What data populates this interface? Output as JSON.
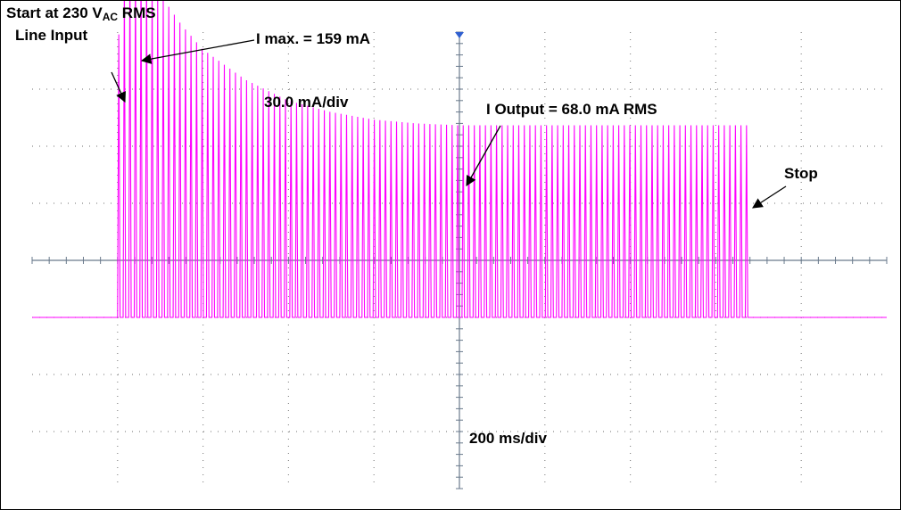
{
  "chart_data": {
    "type": "line",
    "title": "",
    "xlabel": "",
    "ylabel": "",
    "grid": true,
    "divisions": {
      "x": 10,
      "y": 8
    },
    "x_scale_label": "200 ms/div",
    "y_scale_label": "30.0 mA/div",
    "x_range_ms": [
      -1000,
      1000
    ],
    "y_range_mA": [
      -120,
      120
    ],
    "trigger_marker": "trigger-arrow",
    "series": [
      {
        "color": "#ff00ff",
        "baseline_mA": -30.0,
        "start_ms": -800,
        "stop_ms": 680,
        "pulse_period_ms": 13,
        "peak_mA": 159,
        "steady_peak_mA": 68.0,
        "envelope_ms": [
          -800,
          -780,
          -750,
          -700,
          -650,
          -600,
          -500,
          -400,
          -300,
          -200,
          -100,
          0,
          100,
          300,
          500,
          680
        ],
        "envelope_mA": [
          110,
          155,
          159,
          140,
          124,
          111,
          95,
          84,
          78,
          74,
          72,
          71,
          71,
          71,
          71,
          71
        ]
      }
    ]
  },
  "annotations": {
    "start_line1_prefix": "Start at 230 V",
    "start_line1_sub": "AC",
    "start_line1_suffix": " RMS",
    "start_line2": "Line Input",
    "imax": "I max. = 159 mA",
    "vertical_scale": "30.0 mA/div",
    "ioutput": "I Output = 68.0 mA RMS",
    "stop": "Stop",
    "time_scale": "200 ms/div"
  }
}
